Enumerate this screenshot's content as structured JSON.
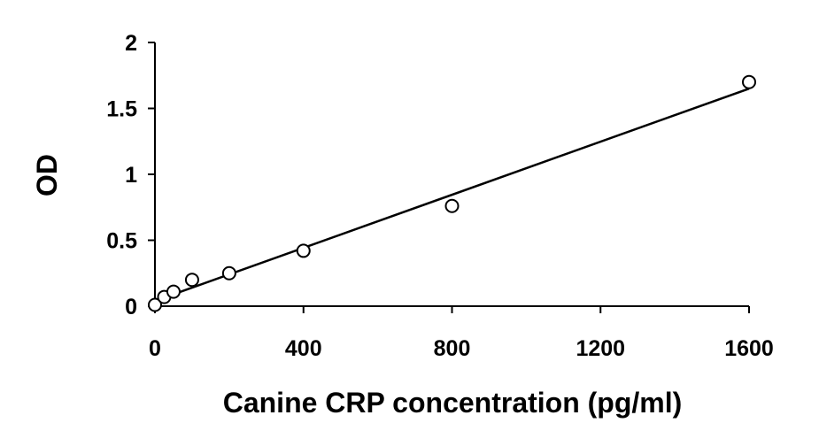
{
  "chart_data": {
    "type": "scatter",
    "title": "",
    "xlabel": "Canine CRP concentration (pg/ml)",
    "ylabel": "OD",
    "xlim": [
      0,
      1600
    ],
    "ylim": [
      0,
      2
    ],
    "x_ticks": [
      0,
      400,
      800,
      1200,
      1600
    ],
    "y_ticks": [
      0,
      0.5,
      1,
      1.5,
      2
    ],
    "x_tick_labels": [
      "0",
      "400",
      "800",
      "1200",
      "1600"
    ],
    "y_tick_labels": [
      "0",
      "0.5",
      "1",
      "1.5",
      "2"
    ],
    "grid": false,
    "legend": "none",
    "series": [
      {
        "marker": "open-circle",
        "x": [
          0,
          25,
          50,
          100,
          200,
          400,
          800,
          1600
        ],
        "y": [
          0.01,
          0.07,
          0.11,
          0.2,
          0.25,
          0.42,
          0.76,
          1.7
        ]
      }
    ],
    "trendline": {
      "type": "linear",
      "x": [
        0,
        1600
      ],
      "y": [
        0.04,
        1.65
      ]
    },
    "colors": {
      "marker_stroke": "#000000",
      "marker_fill": "#ffffff",
      "line": "#000000",
      "axis": "#000000"
    }
  }
}
